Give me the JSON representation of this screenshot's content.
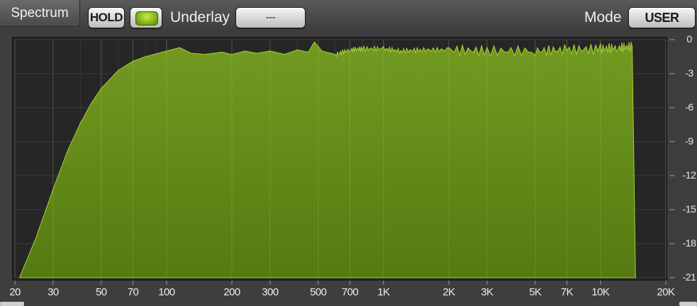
{
  "header": {
    "tab_label": "Spectrum",
    "hold_label": "HOLD",
    "underlay_label": "Underlay",
    "underlay_value": "---",
    "mode_label": "Mode",
    "mode_value": "USER"
  },
  "colors": {
    "spectrum_fill_top": "#739a21",
    "spectrum_fill_bottom": "#557a11",
    "spectrum_edge": "#a6d234",
    "led_on": "#8fc422",
    "background": "#3e3e3e"
  },
  "chart_data": {
    "type": "area",
    "xscale": "log",
    "xlim": [
      20,
      20000
    ],
    "ylim": [
      -21,
      0
    ],
    "grid": true,
    "x_tick_labels": [
      "20",
      "30",
      "50",
      "70",
      "100",
      "200",
      "300",
      "500",
      "700",
      "1K",
      "2K",
      "3K",
      "5K",
      "7K",
      "10K",
      "20K"
    ],
    "x_tick_values": [
      20,
      30,
      50,
      70,
      100,
      200,
      300,
      500,
      700,
      1000,
      2000,
      3000,
      5000,
      7000,
      10000,
      20000
    ],
    "y_tick_labels": [
      "0",
      "-3",
      "-6",
      "-9",
      "-12",
      "-15",
      "-18",
      "-21"
    ],
    "y_tick_values": [
      0,
      -3,
      -6,
      -9,
      -12,
      -15,
      -18,
      -21
    ],
    "series": [
      {
        "x": [
          21,
          25,
          30,
          35,
          40,
          45,
          50,
          60,
          70,
          80,
          100,
          115,
          130,
          150,
          180,
          200,
          230,
          260,
          300,
          350,
          400,
          450,
          480,
          520,
          600,
          700,
          800,
          1000,
          1200,
          1500,
          2000,
          3000,
          5000,
          7000,
          10000,
          12000,
          14000,
          14500
        ],
        "y": [
          -21,
          -17.5,
          -13.2,
          -9.8,
          -7.4,
          -5.6,
          -4.3,
          -2.7,
          -1.9,
          -1.5,
          -1.0,
          -0.7,
          -1.2,
          -1.3,
          -1.1,
          -1.3,
          -1.0,
          -1.2,
          -1.0,
          -1.3,
          -0.9,
          -1.1,
          -0.2,
          -1.0,
          -1.3,
          -0.9,
          -0.8,
          -0.8,
          -1.0,
          -0.9,
          -0.9,
          -1.0,
          -1.0,
          -0.9,
          -0.8,
          -0.7,
          -0.6,
          -21
        ]
      }
    ]
  }
}
